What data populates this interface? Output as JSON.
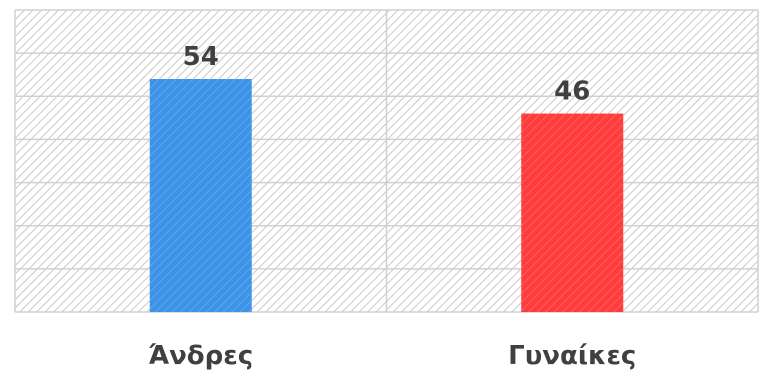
{
  "chart_data": {
    "type": "bar",
    "categories": [
      "Άνδρες",
      "Γυναίκες"
    ],
    "values": [
      54,
      46
    ],
    "data_labels": [
      "54",
      "46"
    ],
    "colors": [
      "#3d93e8",
      "#ff3b3b"
    ],
    "ylim": [
      0,
      70
    ],
    "grid": true,
    "legend": "none",
    "title": "",
    "xlabel": "",
    "ylabel": ""
  }
}
